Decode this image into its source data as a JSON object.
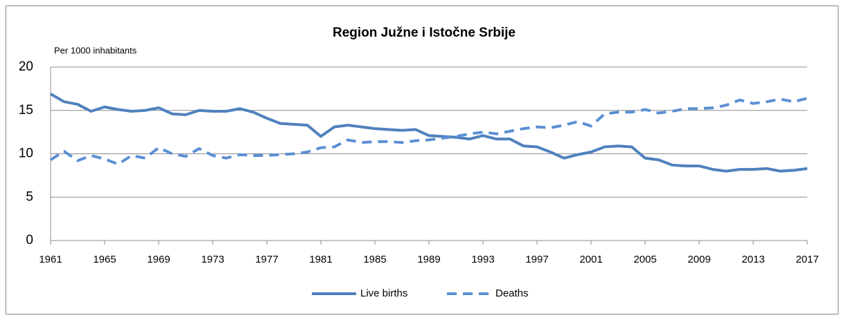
{
  "chart_data": {
    "type": "line",
    "title": "Region Južne i Istočne Srbije",
    "y_label": "Per 1000 inhabitants",
    "x": [
      1961,
      1962,
      1963,
      1964,
      1965,
      1966,
      1967,
      1968,
      1969,
      1970,
      1971,
      1972,
      1973,
      1974,
      1975,
      1976,
      1977,
      1978,
      1979,
      1980,
      1981,
      1982,
      1983,
      1984,
      1985,
      1986,
      1987,
      1988,
      1989,
      1990,
      1991,
      1992,
      1993,
      1994,
      1995,
      1996,
      1997,
      1998,
      1999,
      2000,
      2001,
      2002,
      2003,
      2004,
      2005,
      2006,
      2007,
      2008,
      2009,
      2010,
      2011,
      2012,
      2013,
      2014,
      2015,
      2016,
      2017
    ],
    "series": [
      {
        "name": "Live births",
        "color": "#4f81bd",
        "dash": false,
        "values": [
          16.9,
          16.0,
          15.7,
          14.9,
          15.4,
          15.1,
          14.9,
          15.0,
          15.3,
          14.6,
          14.5,
          15.0,
          14.9,
          14.9,
          15.2,
          14.8,
          14.1,
          13.5,
          13.4,
          13.3,
          12.0,
          13.1,
          13.3,
          13.1,
          12.9,
          12.8,
          12.7,
          12.8,
          12.1,
          12.0,
          11.9,
          11.7,
          12.1,
          11.7,
          11.7,
          10.9,
          10.8,
          10.2,
          9.5,
          9.9,
          10.2,
          10.8,
          10.9,
          10.8,
          9.5,
          9.3,
          8.7,
          8.6,
          8.6,
          8.2,
          8.0,
          8.2,
          8.2,
          8.3,
          8.0,
          8.1,
          8.3
        ]
      },
      {
        "name": "Deaths",
        "color": "#5b8fd4",
        "dash": true,
        "values": [
          9.3,
          10.3,
          9.2,
          9.8,
          9.4,
          8.8,
          9.8,
          9.5,
          10.7,
          10.0,
          9.7,
          10.6,
          9.8,
          9.5,
          9.9,
          9.8,
          9.8,
          9.9,
          10.0,
          10.2,
          10.7,
          10.8,
          11.6,
          11.3,
          11.4,
          11.4,
          11.3,
          11.5,
          11.6,
          11.8,
          12.0,
          12.3,
          12.5,
          12.3,
          12.6,
          12.9,
          13.1,
          13.0,
          13.3,
          13.7,
          13.2,
          14.6,
          14.8,
          14.8,
          15.1,
          14.7,
          14.9,
          15.2,
          15.2,
          15.3,
          15.6,
          16.2,
          15.8,
          16.0,
          16.3,
          16.0,
          16.4
        ]
      }
    ],
    "xlim": [
      1961,
      2017
    ],
    "xticks": [
      1961,
      1965,
      1969,
      1973,
      1977,
      1981,
      1985,
      1989,
      1993,
      1997,
      2001,
      2005,
      2009,
      2013,
      2017
    ],
    "ylim": [
      0,
      20
    ],
    "yticks": [
      0,
      5,
      10,
      15,
      20
    ],
    "grid": true,
    "legend": "bottom"
  }
}
